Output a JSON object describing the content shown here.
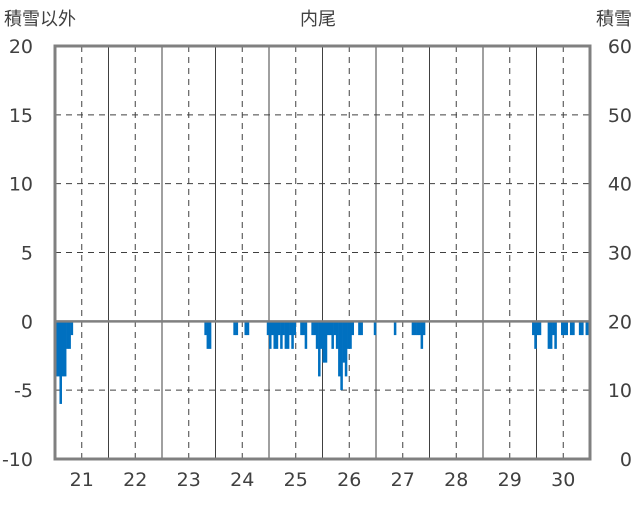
{
  "chart_data": {
    "type": "bar",
    "title": "内尾",
    "left_axis_label": "積雪以外",
    "right_axis_label": "積雪",
    "y_ticks_left": [
      "20",
      "15",
      "10",
      "5",
      "0",
      "-5",
      "-10"
    ],
    "y_ticks_right": [
      "60",
      "50",
      "40",
      "30",
      "20",
      "10",
      "0"
    ],
    "ylim_left": [
      -10,
      20
    ],
    "ylim_right": [
      0,
      60
    ],
    "x_ticks": [
      "21",
      "22",
      "23",
      "24",
      "25",
      "26",
      "27",
      "28",
      "29",
      "30"
    ],
    "x_start_day": 21,
    "x_span_days": 10,
    "grid": true,
    "bar_color": "#0070c0",
    "series": [
      {
        "values": [
          {
            "t": "21日 0時",
            "v": -4
          },
          {
            "t": "21日 1時",
            "v": -4
          },
          {
            "t": "21日 2時",
            "v": -6
          },
          {
            "t": "21日 3時",
            "v": -4
          },
          {
            "t": "21日 4時",
            "v": -4
          },
          {
            "t": "21日 5時",
            "v": -2
          },
          {
            "t": "21日 6時",
            "v": -2
          },
          {
            "t": "21日 7時",
            "v": -1
          },
          {
            "t": "23日 19時",
            "v": -1
          },
          {
            "t": "23日 20時",
            "v": -2
          },
          {
            "t": "23日 21時",
            "v": -2
          },
          {
            "t": "24日 8時",
            "v": -1
          },
          {
            "t": "24日 9時",
            "v": -1
          },
          {
            "t": "24日 13時",
            "v": -1
          },
          {
            "t": "24日 14時",
            "v": -1
          },
          {
            "t": "24日 23時",
            "v": -1
          },
          {
            "t": "25日 0時",
            "v": -2
          },
          {
            "t": "25日 1時",
            "v": -1
          },
          {
            "t": "25日 2時",
            "v": -2
          },
          {
            "t": "25日 3时",
            "v": -2
          },
          {
            "t": "25日 4時",
            "v": -1
          },
          {
            "t": "25日 5時",
            "v": -2
          },
          {
            "t": "25日 6時",
            "v": -1
          },
          {
            "t": "25日 7時",
            "v": -2
          },
          {
            "t": "25日 8時",
            "v": -2
          },
          {
            "t": "25日 9時",
            "v": -1
          },
          {
            "t": "25日 10時",
            "v": -2
          },
          {
            "t": "25日 11時",
            "v": -1
          },
          {
            "t": "25日 14時",
            "v": -1
          },
          {
            "t": "25日 15時",
            "v": -1
          },
          {
            "t": "25日 16時",
            "v": -2
          },
          {
            "t": "25日 19時",
            "v": -1
          },
          {
            "t": "25日 20時",
            "v": -1
          },
          {
            "t": "25日 21時",
            "v": -2
          },
          {
            "t": "25日 22時",
            "v": -4
          },
          {
            "t": "25日 23時",
            "v": -2
          },
          {
            "t": "26日 0時",
            "v": -3
          },
          {
            "t": "26日 1時",
            "v": -3
          },
          {
            "t": "26日 2時",
            "v": -1
          },
          {
            "t": "26日 3時",
            "v": -1
          },
          {
            "t": "26日 4時",
            "v": -2
          },
          {
            "t": "26日 5時",
            "v": -1
          },
          {
            "t": "26日 6時",
            "v": -2
          },
          {
            "t": "26日 7時",
            "v": -4
          },
          {
            "t": "26日 8時",
            "v": -5
          },
          {
            "t": "26日 9時",
            "v": -3
          },
          {
            "t": "26日 10時",
            "v": -4
          },
          {
            "t": "26日 11時",
            "v": -2
          },
          {
            "t": "26日 12時",
            "v": -2
          },
          {
            "t": "26日 13時",
            "v": -1
          },
          {
            "t": "26日 16時",
            "v": -1
          },
          {
            "t": "26日 17時",
            "v": -1
          },
          {
            "t": "26日 23時",
            "v": -1
          },
          {
            "t": "27日 8時",
            "v": -1
          },
          {
            "t": "27日 16時",
            "v": -1
          },
          {
            "t": "27日 17時",
            "v": -1
          },
          {
            "t": "27日 18時",
            "v": -1
          },
          {
            "t": "27日 19時",
            "v": -1
          },
          {
            "t": "27日 20時",
            "v": -2
          },
          {
            "t": "27日 21時",
            "v": -1
          },
          {
            "t": "29日 22時",
            "v": -1
          },
          {
            "t": "29日 23時",
            "v": -2
          },
          {
            "t": "30日 0時",
            "v": -1
          },
          {
            "t": "30日 1時",
            "v": -1
          },
          {
            "t": "30日 5時",
            "v": -2
          },
          {
            "t": "30日 6時",
            "v": -2
          },
          {
            "t": "30日 7時",
            "v": -1
          },
          {
            "t": "30日 8時",
            "v": -2
          },
          {
            "t": "30日 11時",
            "v": -1
          },
          {
            "t": "30日 12時",
            "v": -1
          },
          {
            "t": "30日 13時",
            "v": -1
          },
          {
            "t": "30日 15時",
            "v": -1
          },
          {
            "t": "30日 16時",
            "v": -1
          },
          {
            "t": "30日 19時",
            "v": -1
          },
          {
            "t": "30日 20時",
            "v": -1
          },
          {
            "t": "30日 22時",
            "v": -1
          },
          {
            "t": "30日 23時",
            "v": -1
          }
        ]
      }
    ]
  }
}
